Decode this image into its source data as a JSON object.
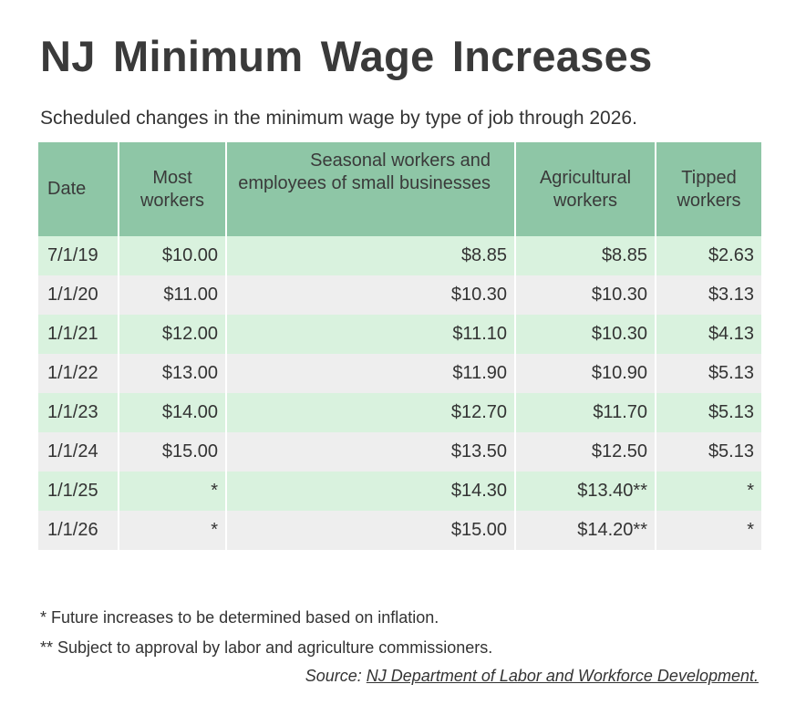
{
  "title": "NJ  Minimum Wage Increases",
  "subtitle": "Scheduled changes in the minimum wage by type of job through 2026.",
  "notes": {
    "note1": "* Future increases to be determined based on inflation.",
    "note2": "** Subject to approval by labor and agriculture commissioners."
  },
  "source": {
    "prefix": "Source: ",
    "link_text": "NJ Department of Labor and Workforce Development."
  },
  "colors": {
    "header_bg": "#8ec6a6",
    "row_odd_bg": "#d9f2de",
    "row_even_bg": "#eeeeee"
  },
  "chart_data": {
    "type": "table",
    "columns": [
      "Date",
      "Most workers",
      "Seasonal workers and employees of small businesses",
      "Agricultural workers",
      "Tipped workers"
    ],
    "rows": [
      [
        "7/1/19",
        "$10.00",
        "$8.85",
        "$8.85",
        "$2.63"
      ],
      [
        "1/1/20",
        "$11.00",
        "$10.30",
        "$10.30",
        "$3.13"
      ],
      [
        "1/1/21",
        "$12.00",
        "$11.10",
        "$10.30",
        "$4.13"
      ],
      [
        "1/1/22",
        "$13.00",
        "$11.90",
        "$10.90",
        "$5.13"
      ],
      [
        "1/1/23",
        "$14.00",
        "$12.70",
        "$11.70",
        "$5.13"
      ],
      [
        "1/1/24",
        "$15.00",
        "$13.50",
        "$12.50",
        "$5.13"
      ],
      [
        "1/1/25",
        "*",
        "$14.30",
        "$13.40**",
        "*"
      ],
      [
        "1/1/26",
        "*",
        "$15.00",
        "$14.20**",
        "*"
      ]
    ]
  }
}
